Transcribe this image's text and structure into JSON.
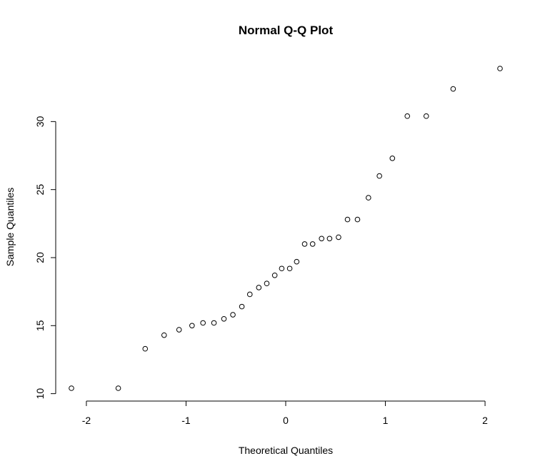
{
  "chart_data": {
    "type": "scatter",
    "title": "Normal Q-Q Plot",
    "xlabel": "Theoretical Quantiles",
    "ylabel": "Sample Quantiles",
    "x_ticks": [
      -2,
      -1,
      0,
      1,
      2
    ],
    "y_ticks": [
      10,
      15,
      20,
      25,
      30
    ],
    "x_tick_labels": [
      "-2",
      "-1",
      "0",
      "1",
      "2"
    ],
    "y_tick_labels": [
      "10",
      "15",
      "20",
      "25",
      "30"
    ],
    "xlim": [
      -2.15,
      2.15
    ],
    "ylim": [
      10.4,
      33.9
    ],
    "grid": false,
    "legend": "none",
    "point_color": "#000000",
    "points": [
      {
        "x": -2.15,
        "y": 10.4
      },
      {
        "x": -1.68,
        "y": 10.4
      },
      {
        "x": -1.41,
        "y": 13.3
      },
      {
        "x": -1.22,
        "y": 14.3
      },
      {
        "x": -1.07,
        "y": 14.7
      },
      {
        "x": -0.94,
        "y": 15.0
      },
      {
        "x": -0.83,
        "y": 15.2
      },
      {
        "x": -0.72,
        "y": 15.2
      },
      {
        "x": -0.62,
        "y": 15.5
      },
      {
        "x": -0.53,
        "y": 15.8
      },
      {
        "x": -0.44,
        "y": 16.4
      },
      {
        "x": -0.36,
        "y": 17.3
      },
      {
        "x": -0.27,
        "y": 17.8
      },
      {
        "x": -0.19,
        "y": 18.1
      },
      {
        "x": -0.11,
        "y": 18.7
      },
      {
        "x": -0.04,
        "y": 19.2
      },
      {
        "x": 0.04,
        "y": 19.2
      },
      {
        "x": 0.11,
        "y": 19.7
      },
      {
        "x": 0.19,
        "y": 21.0
      },
      {
        "x": 0.27,
        "y": 21.0
      },
      {
        "x": 0.36,
        "y": 21.4
      },
      {
        "x": 0.44,
        "y": 21.4
      },
      {
        "x": 0.53,
        "y": 21.5
      },
      {
        "x": 0.62,
        "y": 22.8
      },
      {
        "x": 0.72,
        "y": 22.8
      },
      {
        "x": 0.83,
        "y": 24.4
      },
      {
        "x": 0.94,
        "y": 26.0
      },
      {
        "x": 1.07,
        "y": 27.3
      },
      {
        "x": 1.22,
        "y": 30.4
      },
      {
        "x": 1.41,
        "y": 30.4
      },
      {
        "x": 1.68,
        "y": 32.4
      },
      {
        "x": 2.15,
        "y": 33.9
      }
    ]
  }
}
